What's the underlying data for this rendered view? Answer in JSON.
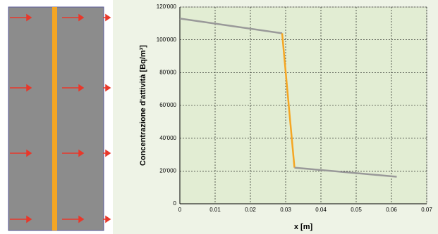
{
  "chart_data": {
    "type": "line",
    "ylabel": "Concentrazione d'attività [Bq/m³]",
    "xlabel": "x [m]",
    "xlim": [
      0,
      0.07
    ],
    "xticks": [
      0,
      0.01,
      0.02,
      0.03,
      0.04,
      0.05,
      0.06,
      0.07
    ],
    "ylim": [
      0,
      120000
    ],
    "yticks": [
      0,
      {
        "value": 20000,
        "label": "20'000"
      },
      {
        "value": 40000,
        "label": "40'000"
      },
      {
        "value": 60000,
        "label": "60'000"
      },
      {
        "value": 80000,
        "label": "80'000"
      },
      {
        "value": 100000,
        "label": "100'000"
      },
      {
        "value": 120000,
        "label": "120'000"
      }
    ],
    "grid": true,
    "series": [
      {
        "color": "#999999",
        "x": [
          0,
          0.029
        ],
        "values": [
          113000,
          104000
        ]
      },
      {
        "color": "#f5a623",
        "x": [
          0.029,
          0.0325
        ],
        "values": [
          104000,
          22000
        ]
      },
      {
        "color": "#999999",
        "x": [
          0.0325,
          0.0615
        ],
        "values": [
          22000,
          16500
        ]
      }
    ]
  }
}
